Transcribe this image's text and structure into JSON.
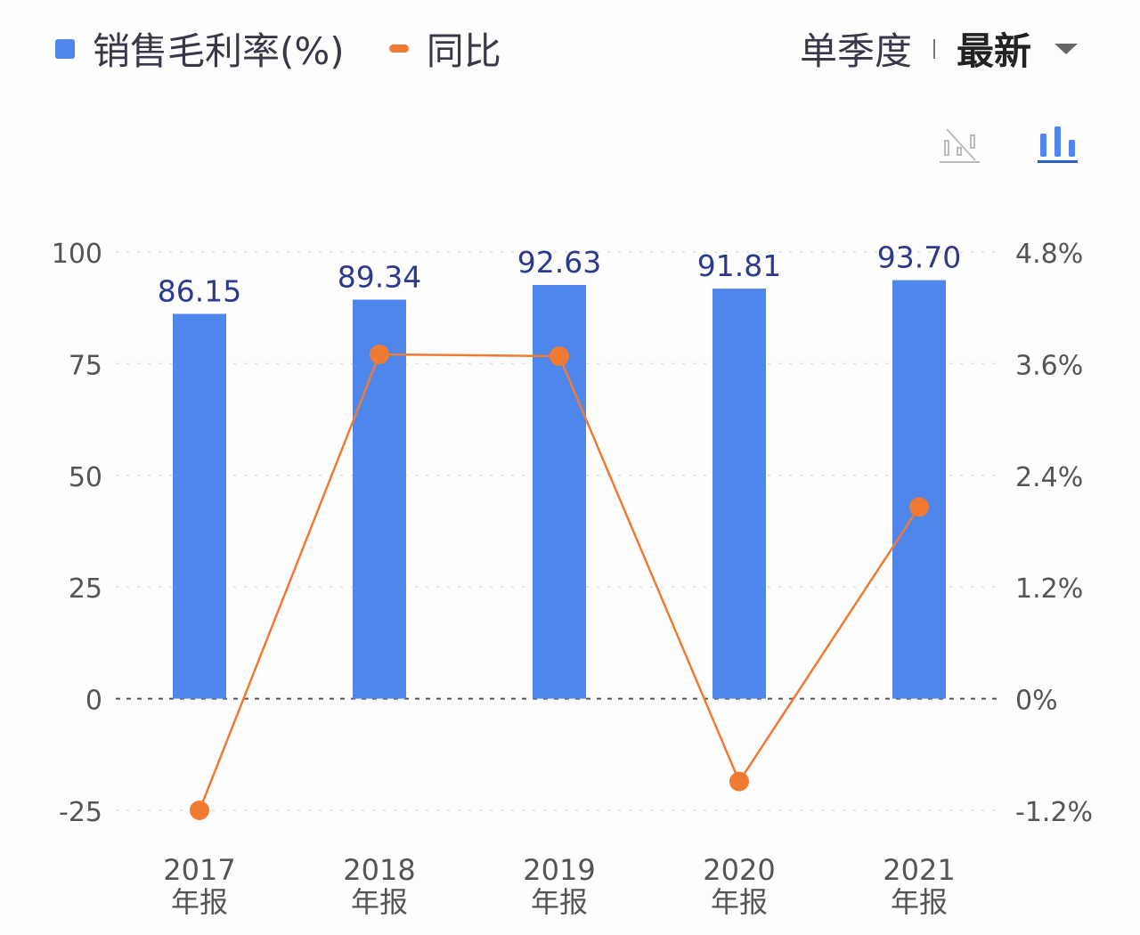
{
  "legend": {
    "bar_label": "销售毛利率(%)",
    "line_label": "同比"
  },
  "controls": {
    "period": "单季度",
    "sort": "最新",
    "icons": [
      "line-chart-disabled-icon",
      "bar-chart-icon"
    ]
  },
  "colors": {
    "bar": "#4f86ec",
    "line": "#f07a32",
    "text": "#3b3648",
    "label": "#2c3a8c"
  },
  "chart_data": {
    "type": "bar+line",
    "categories": [
      "2017\n年报",
      "2018\n年报",
      "2019\n年报",
      "2020\n年报",
      "2021\n年报"
    ],
    "category_lines": [
      [
        "2017",
        "年报"
      ],
      [
        "2018",
        "年报"
      ],
      [
        "2019",
        "年报"
      ],
      [
        "2020",
        "年报"
      ],
      [
        "2021",
        "年报"
      ]
    ],
    "series": [
      {
        "name": "销售毛利率(%)",
        "type": "bar",
        "axis": "left",
        "values": [
          86.15,
          89.34,
          92.63,
          91.81,
          93.7
        ],
        "labels": [
          "86.15",
          "89.34",
          "92.63",
          "91.81",
          "93.70"
        ]
      },
      {
        "name": "同比",
        "type": "line",
        "axis": "right",
        "values": [
          -1.2,
          3.7,
          3.68,
          -0.89,
          2.06
        ]
      }
    ],
    "left_axis": {
      "ylim": [
        -25,
        100
      ],
      "ticks": [
        "100",
        "75",
        "50",
        "25",
        "0",
        "-25"
      ]
    },
    "right_axis": {
      "ylim": [
        -1.2,
        4.8
      ],
      "ticks": [
        "4.8%",
        "3.6%",
        "2.4%",
        "1.2%",
        "0%",
        "-1.2%"
      ]
    },
    "grid": true
  }
}
